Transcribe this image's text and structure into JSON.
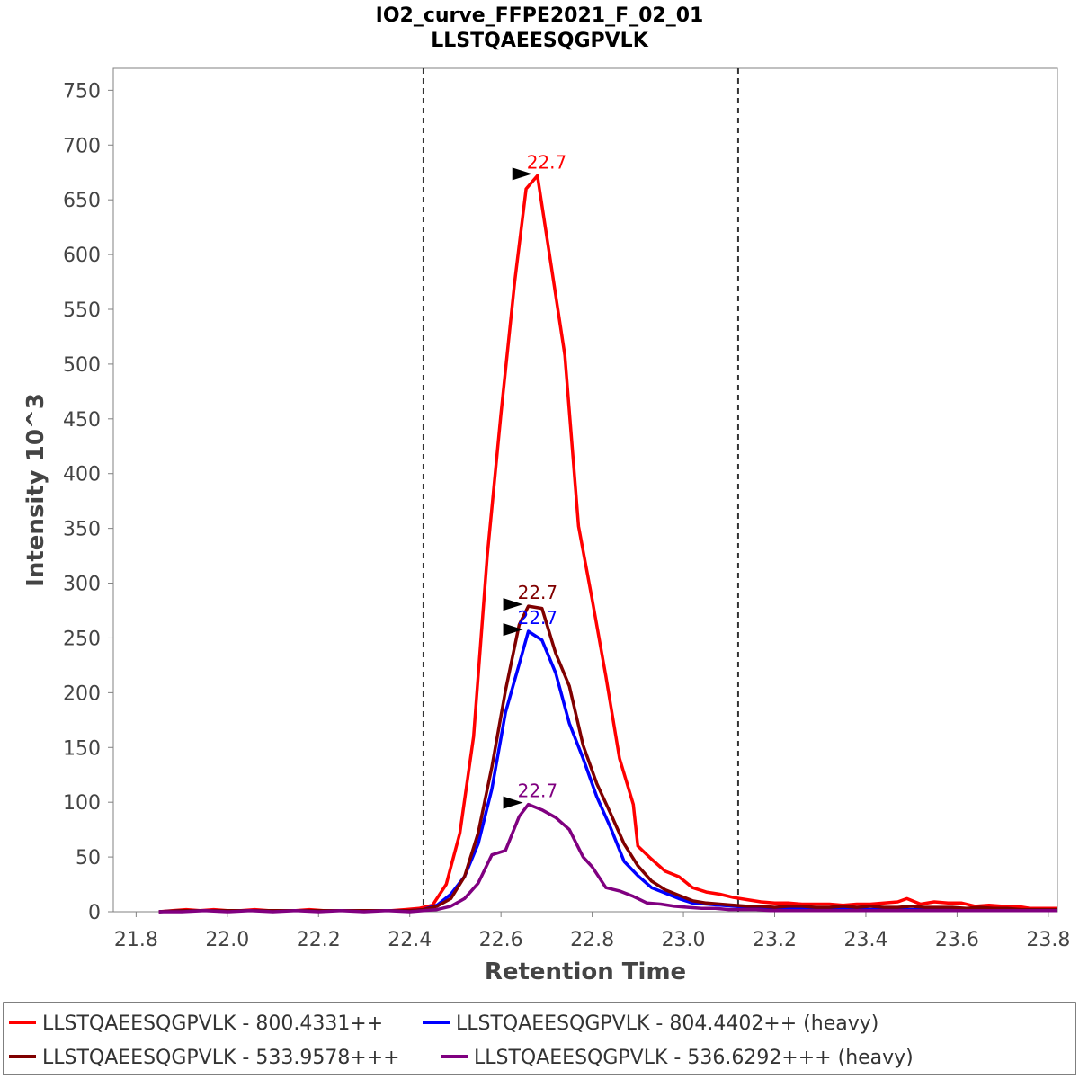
{
  "chart_data": {
    "type": "line",
    "title": "IO2_curve_FFPE2021_F_02_01",
    "subtitle": "LLSTQAEESQGPVLK",
    "xlabel": "Retention Time",
    "ylabel": "Intensity 10^3",
    "xlim": [
      21.75,
      23.82
    ],
    "ylim": [
      0,
      770
    ],
    "xticks": [
      "21.8",
      "22.0",
      "22.2",
      "22.4",
      "22.6",
      "22.8",
      "23.0",
      "23.2",
      "23.4",
      "23.6",
      "23.8"
    ],
    "yticks": [
      "0",
      "50",
      "100",
      "150",
      "200",
      "250",
      "300",
      "350",
      "400",
      "450",
      "500",
      "550",
      "600",
      "650",
      "700",
      "750"
    ],
    "boundaries": [
      22.43,
      23.12
    ],
    "series": [
      {
        "name": "LLSTQAEESQGPVLK - 800.4331++",
        "color": "#ff0000",
        "peak_label": "22.7",
        "peak": [
          22.68,
          672
        ],
        "points": [
          [
            21.85,
            0
          ],
          [
            21.88,
            1
          ],
          [
            21.91,
            2
          ],
          [
            21.94,
            1
          ],
          [
            21.97,
            2
          ],
          [
            22.0,
            1
          ],
          [
            22.03,
            1
          ],
          [
            22.06,
            2
          ],
          [
            22.09,
            1
          ],
          [
            22.12,
            1
          ],
          [
            22.15,
            1
          ],
          [
            22.18,
            2
          ],
          [
            22.21,
            1
          ],
          [
            22.24,
            1
          ],
          [
            22.27,
            1
          ],
          [
            22.3,
            1
          ],
          [
            22.33,
            1
          ],
          [
            22.36,
            1
          ],
          [
            22.39,
            2
          ],
          [
            22.42,
            3
          ],
          [
            22.45,
            6
          ],
          [
            22.48,
            25
          ],
          [
            22.51,
            72
          ],
          [
            22.54,
            160
          ],
          [
            22.57,
            325
          ],
          [
            22.6,
            455
          ],
          [
            22.63,
            575
          ],
          [
            22.655,
            660
          ],
          [
            22.68,
            672
          ],
          [
            22.71,
            590
          ],
          [
            22.74,
            508
          ],
          [
            22.77,
            352
          ],
          [
            22.8,
            285
          ],
          [
            22.83,
            215
          ],
          [
            22.86,
            140
          ],
          [
            22.89,
            98
          ],
          [
            22.9,
            60
          ],
          [
            22.93,
            48
          ],
          [
            22.96,
            37
          ],
          [
            22.99,
            32
          ],
          [
            23.02,
            22
          ],
          [
            23.05,
            18
          ],
          [
            23.08,
            16
          ],
          [
            23.11,
            13
          ],
          [
            23.14,
            11
          ],
          [
            23.17,
            9
          ],
          [
            23.2,
            8
          ],
          [
            23.23,
            8
          ],
          [
            23.26,
            7
          ],
          [
            23.29,
            7
          ],
          [
            23.32,
            7
          ],
          [
            23.35,
            6
          ],
          [
            23.38,
            7
          ],
          [
            23.41,
            7
          ],
          [
            23.44,
            8
          ],
          [
            23.47,
            9
          ],
          [
            23.49,
            12
          ],
          [
            23.52,
            7
          ],
          [
            23.55,
            9
          ],
          [
            23.58,
            8
          ],
          [
            23.61,
            8
          ],
          [
            23.64,
            5
          ],
          [
            23.67,
            6
          ],
          [
            23.7,
            5
          ],
          [
            23.73,
            5
          ],
          [
            23.76,
            3
          ],
          [
            23.79,
            3
          ],
          [
            23.82,
            3
          ]
        ]
      },
      {
        "name": "LLSTQAEESQGPVLK - 804.4402++ (heavy)",
        "color": "#0000ff",
        "peak_label": "22.7",
        "peak": [
          22.66,
          256
        ],
        "points": [
          [
            21.85,
            0
          ],
          [
            21.9,
            1
          ],
          [
            21.95,
            1
          ],
          [
            22.0,
            1
          ],
          [
            22.05,
            1
          ],
          [
            22.1,
            1
          ],
          [
            22.15,
            1
          ],
          [
            22.2,
            1
          ],
          [
            22.25,
            1
          ],
          [
            22.3,
            1
          ],
          [
            22.35,
            1
          ],
          [
            22.4,
            1
          ],
          [
            22.43,
            2
          ],
          [
            22.46,
            6
          ],
          [
            22.49,
            16
          ],
          [
            22.52,
            32
          ],
          [
            22.55,
            62
          ],
          [
            22.58,
            112
          ],
          [
            22.61,
            182
          ],
          [
            22.64,
            226
          ],
          [
            22.66,
            256
          ],
          [
            22.69,
            248
          ],
          [
            22.72,
            218
          ],
          [
            22.75,
            172
          ],
          [
            22.78,
            140
          ],
          [
            22.81,
            105
          ],
          [
            22.84,
            77
          ],
          [
            22.87,
            46
          ],
          [
            22.9,
            33
          ],
          [
            22.93,
            22
          ],
          [
            22.96,
            17
          ],
          [
            22.99,
            12
          ],
          [
            23.02,
            8
          ],
          [
            23.05,
            7
          ],
          [
            23.08,
            6
          ],
          [
            23.11,
            5
          ],
          [
            23.14,
            4
          ],
          [
            23.17,
            3
          ],
          [
            23.2,
            3
          ],
          [
            23.23,
            3
          ],
          [
            23.26,
            3
          ],
          [
            23.29,
            2
          ],
          [
            23.32,
            3
          ],
          [
            23.35,
            3
          ],
          [
            23.38,
            3
          ],
          [
            23.41,
            2
          ],
          [
            23.44,
            3
          ],
          [
            23.47,
            2
          ],
          [
            23.5,
            2
          ],
          [
            23.53,
            2
          ],
          [
            23.56,
            2
          ],
          [
            23.59,
            2
          ],
          [
            23.62,
            1
          ],
          [
            23.65,
            2
          ],
          [
            23.68,
            1
          ],
          [
            23.71,
            1
          ],
          [
            23.74,
            1
          ],
          [
            23.77,
            1
          ],
          [
            23.8,
            1
          ],
          [
            23.82,
            1
          ]
        ]
      },
      {
        "name": "LLSTQAEESQGPVLK - 533.9578+++",
        "color": "#800000",
        "peak_label": "22.7",
        "peak": [
          22.66,
          279
        ],
        "points": [
          [
            21.85,
            0
          ],
          [
            21.9,
            1
          ],
          [
            21.95,
            1
          ],
          [
            22.0,
            1
          ],
          [
            22.05,
            1
          ],
          [
            22.1,
            1
          ],
          [
            22.15,
            1
          ],
          [
            22.2,
            1
          ],
          [
            22.25,
            1
          ],
          [
            22.3,
            1
          ],
          [
            22.35,
            1
          ],
          [
            22.4,
            1
          ],
          [
            22.43,
            2
          ],
          [
            22.46,
            5
          ],
          [
            22.49,
            12
          ],
          [
            22.52,
            32
          ],
          [
            22.55,
            72
          ],
          [
            22.58,
            132
          ],
          [
            22.61,
            202
          ],
          [
            22.64,
            262
          ],
          [
            22.66,
            279
          ],
          [
            22.69,
            277
          ],
          [
            22.72,
            236
          ],
          [
            22.75,
            206
          ],
          [
            22.78,
            152
          ],
          [
            22.81,
            117
          ],
          [
            22.84,
            90
          ],
          [
            22.87,
            62
          ],
          [
            22.9,
            42
          ],
          [
            22.93,
            28
          ],
          [
            22.96,
            20
          ],
          [
            22.99,
            15
          ],
          [
            23.02,
            10
          ],
          [
            23.05,
            8
          ],
          [
            23.08,
            7
          ],
          [
            23.11,
            6
          ],
          [
            23.14,
            5
          ],
          [
            23.17,
            5
          ],
          [
            23.2,
            4
          ],
          [
            23.23,
            5
          ],
          [
            23.26,
            5
          ],
          [
            23.29,
            4
          ],
          [
            23.32,
            4
          ],
          [
            23.35,
            5
          ],
          [
            23.38,
            4
          ],
          [
            23.41,
            5
          ],
          [
            23.44,
            4
          ],
          [
            23.47,
            4
          ],
          [
            23.5,
            5
          ],
          [
            23.53,
            4
          ],
          [
            23.56,
            4
          ],
          [
            23.59,
            4
          ],
          [
            23.62,
            3
          ],
          [
            23.65,
            4
          ],
          [
            23.68,
            3
          ],
          [
            23.71,
            3
          ],
          [
            23.74,
            2
          ],
          [
            23.77,
            2
          ],
          [
            23.8,
            2
          ],
          [
            23.82,
            2
          ]
        ]
      },
      {
        "name": "LLSTQAEESQGPVLK - 536.6292+++ (heavy)",
        "color": "#800080",
        "peak_label": "22.7",
        "peak": [
          22.66,
          98
        ],
        "points": [
          [
            21.85,
            0
          ],
          [
            21.9,
            0
          ],
          [
            21.95,
            1
          ],
          [
            22.0,
            0
          ],
          [
            22.05,
            1
          ],
          [
            22.1,
            0
          ],
          [
            22.15,
            1
          ],
          [
            22.2,
            0
          ],
          [
            22.25,
            1
          ],
          [
            22.3,
            0
          ],
          [
            22.35,
            1
          ],
          [
            22.4,
            0
          ],
          [
            22.43,
            1
          ],
          [
            22.46,
            2
          ],
          [
            22.49,
            5
          ],
          [
            22.52,
            12
          ],
          [
            22.55,
            26
          ],
          [
            22.58,
            52
          ],
          [
            22.61,
            56
          ],
          [
            22.64,
            87
          ],
          [
            22.66,
            98
          ],
          [
            22.69,
            93
          ],
          [
            22.72,
            86
          ],
          [
            22.75,
            75
          ],
          [
            22.78,
            50
          ],
          [
            22.8,
            41
          ],
          [
            22.83,
            22
          ],
          [
            22.86,
            19
          ],
          [
            22.89,
            14
          ],
          [
            22.92,
            8
          ],
          [
            22.95,
            7
          ],
          [
            22.98,
            5
          ],
          [
            23.01,
            4
          ],
          [
            23.04,
            3
          ],
          [
            23.07,
            3
          ],
          [
            23.1,
            2
          ],
          [
            23.13,
            2
          ],
          [
            23.16,
            2
          ],
          [
            23.19,
            1
          ],
          [
            23.22,
            1
          ],
          [
            23.25,
            1
          ],
          [
            23.28,
            1
          ],
          [
            23.31,
            1
          ],
          [
            23.34,
            1
          ],
          [
            23.37,
            1
          ],
          [
            23.4,
            1
          ],
          [
            23.43,
            1
          ],
          [
            23.46,
            1
          ],
          [
            23.49,
            1
          ],
          [
            23.52,
            1
          ],
          [
            23.55,
            1
          ],
          [
            23.58,
            1
          ],
          [
            23.61,
            1
          ],
          [
            23.64,
            1
          ],
          [
            23.67,
            1
          ],
          [
            23.7,
            1
          ],
          [
            23.73,
            1
          ],
          [
            23.76,
            1
          ],
          [
            23.79,
            1
          ],
          [
            23.82,
            1
          ]
        ]
      }
    ]
  }
}
